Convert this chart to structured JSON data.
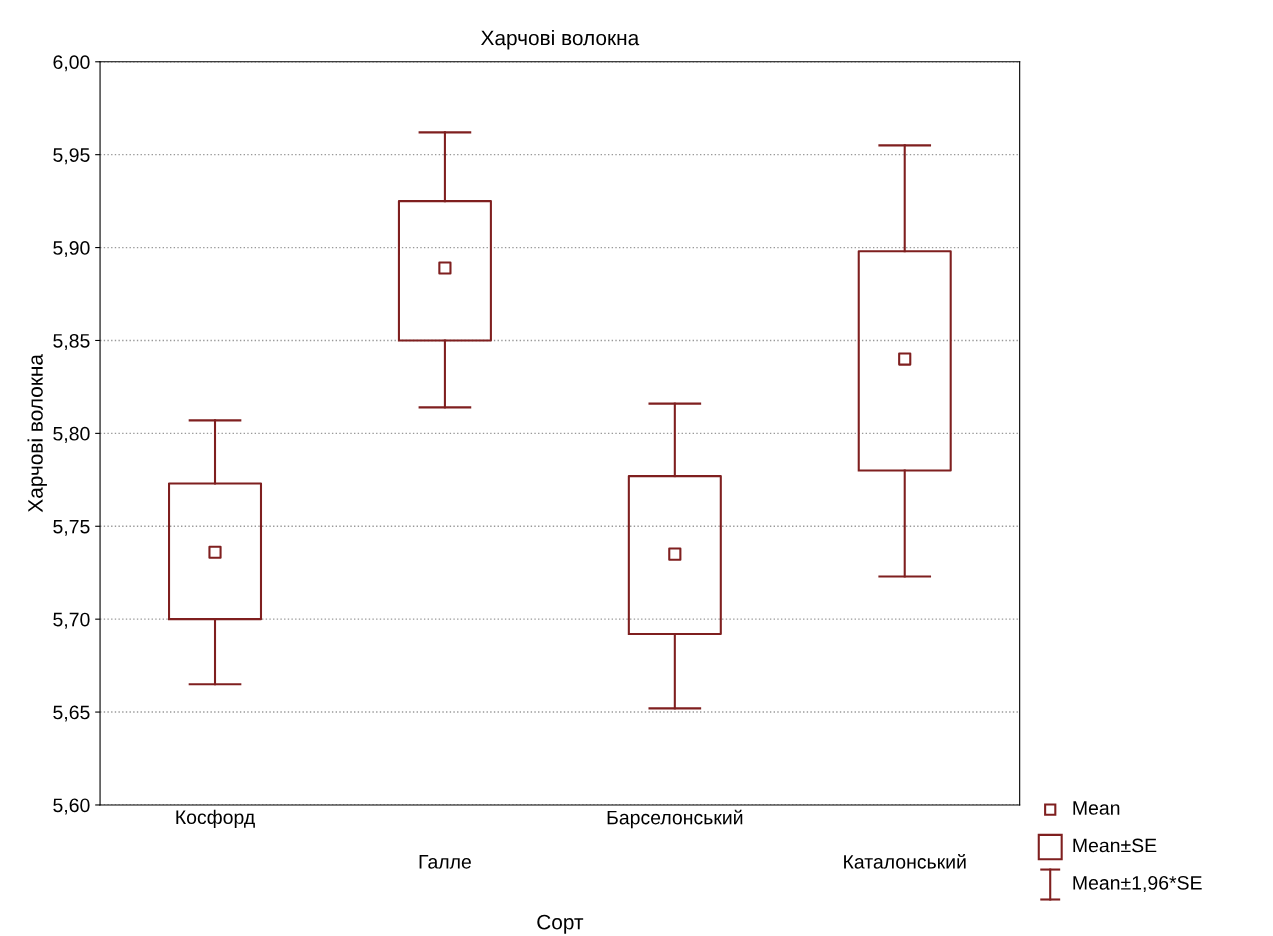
{
  "chart_data": {
    "type": "box",
    "title": "Харчові волокна",
    "xlabel": "Сорт",
    "ylabel": "Харчові волокна",
    "categories": [
      "Косфорд",
      "Галле",
      "Барселонський",
      "Каталонський"
    ],
    "boxes": [
      {
        "low": 5.665,
        "q1": 5.7,
        "median": 5.736,
        "q3": 5.773,
        "high": 5.807
      },
      {
        "low": 5.814,
        "q1": 5.85,
        "median": 5.889,
        "q3": 5.925,
        "high": 5.962
      },
      {
        "low": 5.652,
        "q1": 5.692,
        "median": 5.735,
        "q3": 5.777,
        "high": 5.816
      },
      {
        "low": 5.723,
        "q1": 5.78,
        "median": 5.84,
        "q3": 5.898,
        "high": 5.955
      }
    ],
    "color": "#7f1f1f",
    "ylim": [
      5.6,
      6.0
    ],
    "yticks": [
      {
        "value": 5.6,
        "label": "5,60"
      },
      {
        "value": 5.65,
        "label": "5,65"
      },
      {
        "value": 5.7,
        "label": "5,70"
      },
      {
        "value": 5.75,
        "label": "5,75"
      },
      {
        "value": 5.8,
        "label": "5,80"
      },
      {
        "value": 5.85,
        "label": "5,85"
      },
      {
        "value": 5.9,
        "label": "5,90"
      },
      {
        "value": 5.95,
        "label": "5,95"
      },
      {
        "value": 6.0,
        "label": "6,00"
      }
    ],
    "grid": "y",
    "marker": "square",
    "annotations": [
      "Mean",
      "Mean±SE",
      "Mean±1,96*SE"
    ]
  }
}
